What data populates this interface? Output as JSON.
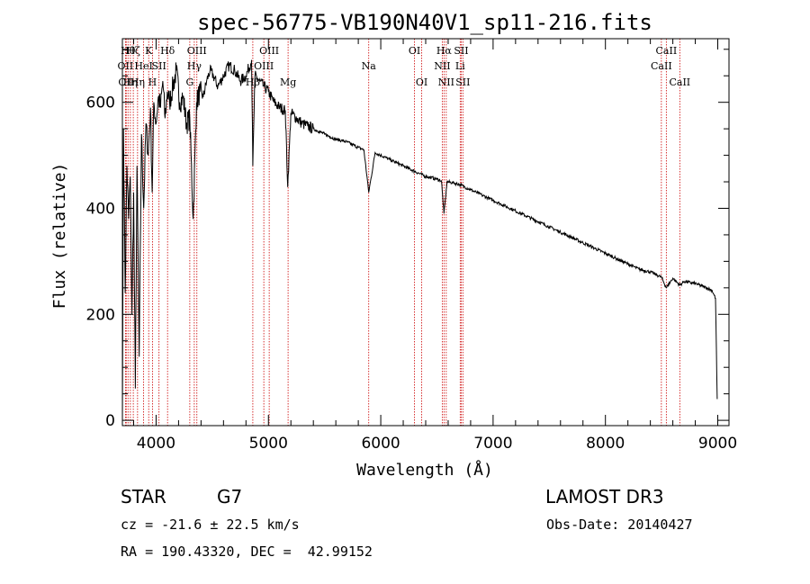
{
  "chart_data": {
    "type": "line",
    "title": "spec-56775-VB190N40V1_sp11-216.fits",
    "xlabel": "Wavelength (Å)",
    "ylabel": "Flux (relative)",
    "xlim": [
      3700,
      9100
    ],
    "ylim": [
      -10,
      720
    ],
    "xticks": [
      4000,
      5000,
      6000,
      7000,
      8000,
      9000
    ],
    "yticks": [
      0,
      200,
      400,
      600
    ],
    "series": [
      {
        "name": "flux",
        "x": [
          3700,
          3710,
          3725,
          3740,
          3755,
          3770,
          3785,
          3800,
          3815,
          3830,
          3850,
          3870,
          3890,
          3910,
          3930,
          3950,
          3965,
          3980,
          4000,
          4020,
          4040,
          4060,
          4080,
          4100,
          4120,
          4150,
          4180,
          4210,
          4240,
          4270,
          4300,
          4330,
          4360,
          4390,
          4420,
          4450,
          4480,
          4510,
          4550,
          4600,
          4650,
          4700,
          4750,
          4800,
          4850,
          4861,
          4880,
          4920,
          4960,
          5000,
          5050,
          5100,
          5150,
          5172,
          5200,
          5250,
          5300,
          5350,
          5400,
          5450,
          5500,
          5550,
          5600,
          5650,
          5700,
          5750,
          5800,
          5850,
          5893,
          5950,
          6000,
          6050,
          6100,
          6150,
          6200,
          6250,
          6300,
          6350,
          6400,
          6450,
          6500,
          6540,
          6563,
          6590,
          6650,
          6700,
          6750,
          6800,
          6850,
          6900,
          6950,
          7000,
          7100,
          7200,
          7300,
          7400,
          7500,
          7600,
          7700,
          7800,
          7900,
          8000,
          8100,
          8200,
          8300,
          8400,
          8498,
          8542,
          8600,
          8662,
          8700,
          8800,
          8900,
          8950,
          8980,
          8995
        ],
        "y": [
          -5,
          550,
          240,
          480,
          380,
          460,
          200,
          430,
          60,
          480,
          120,
          540,
          400,
          560,
          500,
          590,
          430,
          600,
          560,
          610,
          590,
          640,
          570,
          620,
          600,
          630,
          660,
          600,
          610,
          560,
          570,
          380,
          600,
          620,
          610,
          640,
          660,
          650,
          630,
          650,
          670,
          660,
          640,
          650,
          680,
          480,
          650,
          640,
          630,
          620,
          600,
          590,
          585,
          440,
          580,
          570,
          560,
          555,
          550,
          545,
          540,
          535,
          530,
          528,
          525,
          520,
          515,
          510,
          430,
          505,
          500,
          495,
          490,
          485,
          480,
          475,
          470,
          465,
          460,
          458,
          455,
          452,
          390,
          450,
          448,
          445,
          440,
          435,
          430,
          425,
          420,
          415,
          405,
          395,
          385,
          375,
          365,
          355,
          345,
          335,
          325,
          315,
          305,
          295,
          285,
          280,
          270,
          250,
          268,
          255,
          262,
          258,
          250,
          245,
          230,
          40
        ]
      }
    ],
    "line_markers": [
      {
        "wavelength": 3727,
        "label": "OII",
        "row": 2
      },
      {
        "wavelength": 3734,
        "label": "OII",
        "row": 3
      },
      {
        "wavelength": 3750,
        "label": "Hθ",
        "row": 1
      },
      {
        "wavelength": 3771,
        "label": "Hη",
        "row": 3
      },
      {
        "wavelength": 3797,
        "label": "Hζ",
        "row": 1
      },
      {
        "wavelength": 3835,
        "label": "Hη",
        "row": 3
      },
      {
        "wavelength": 3889,
        "label": "HeI",
        "row": 2
      },
      {
        "wavelength": 3934,
        "label": "K",
        "row": 1
      },
      {
        "wavelength": 3968,
        "label": "H",
        "row": 3
      },
      {
        "wavelength": 4026,
        "label": "SII",
        "row": 2
      },
      {
        "wavelength": 4102,
        "label": "Hδ",
        "row": 1
      },
      {
        "wavelength": 4300,
        "label": "G",
        "row": 3
      },
      {
        "wavelength": 4340,
        "label": "Hγ",
        "row": 2
      },
      {
        "wavelength": 4363,
        "label": "OIII",
        "row": 1
      },
      {
        "wavelength": 4861,
        "label": "Hβ",
        "row": 3
      },
      {
        "wavelength": 4959,
        "label": "OIII",
        "row": 2
      },
      {
        "wavelength": 5007,
        "label": "OIII",
        "row": 1
      },
      {
        "wavelength": 5175,
        "label": "Mg",
        "row": 3
      },
      {
        "wavelength": 5893,
        "label": "Na",
        "row": 2
      },
      {
        "wavelength": 6300,
        "label": "OI",
        "row": 1
      },
      {
        "wavelength": 6364,
        "label": "OI",
        "row": 3
      },
      {
        "wavelength": 6548,
        "label": "NII",
        "row": 2
      },
      {
        "wavelength": 6563,
        "label": "Hα",
        "row": 1
      },
      {
        "wavelength": 6583,
        "label": "NII",
        "row": 3
      },
      {
        "wavelength": 6707,
        "label": "Li",
        "row": 2
      },
      {
        "wavelength": 6716,
        "label": "SII",
        "row": 1
      },
      {
        "wavelength": 6731,
        "label": "SII",
        "row": 3
      },
      {
        "wavelength": 8498,
        "label": "CaII",
        "row": 2
      },
      {
        "wavelength": 8542,
        "label": "CaII",
        "row": 1
      },
      {
        "wavelength": 8662,
        "label": "CaII",
        "row": 3
      }
    ],
    "marker_color": "#cc0000"
  },
  "footer": {
    "object_class": "STAR",
    "subclass": "G7",
    "survey": "LAMOST DR3",
    "cz": "cz = -21.6 ± 22.5 km/s",
    "obs_date": "Obs-Date: 20140427",
    "coords": "RA = 190.43320, DEC =  42.99152"
  }
}
